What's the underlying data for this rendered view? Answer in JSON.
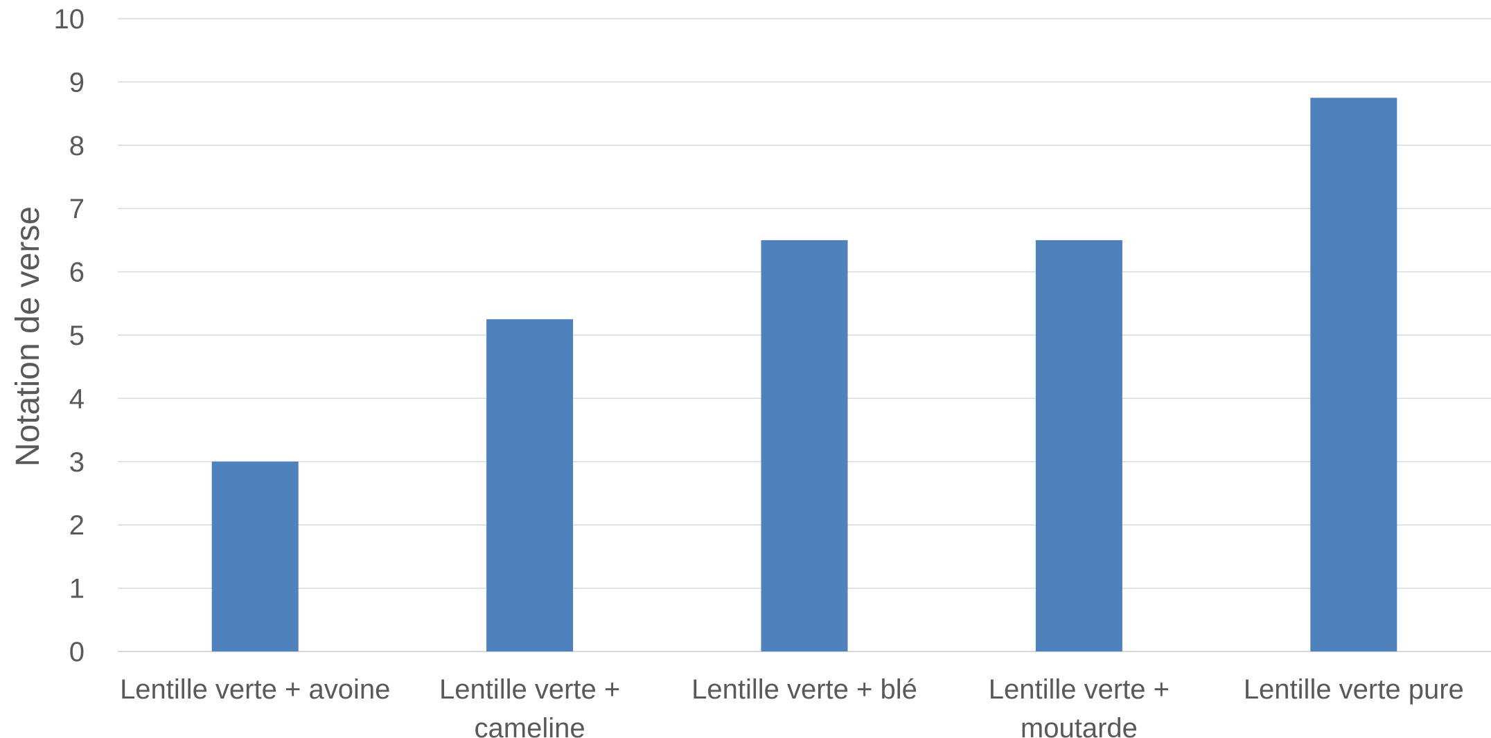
{
  "chart_data": {
    "type": "bar",
    "title": "",
    "xlabel": "",
    "ylabel": "Notation de verse",
    "ylim": [
      0,
      10
    ],
    "yticks": [
      "0",
      "1",
      "2",
      "3",
      "4",
      "5",
      "6",
      "7",
      "8",
      "9",
      "10"
    ],
    "grid": true,
    "legend": "none",
    "categories": [
      [
        "Lentille verte + avoine"
      ],
      [
        "Lentille verte +",
        "cameline"
      ],
      [
        "Lentille verte + blé"
      ],
      [
        "Lentille verte +",
        "moutarde"
      ],
      [
        "Lentille verte pure"
      ]
    ],
    "values": [
      3,
      5.25,
      6.5,
      6.5,
      8.75
    ],
    "bar_color": "#4f81bd",
    "grid_color": "#d9d9d9",
    "text_color": "#595959"
  }
}
